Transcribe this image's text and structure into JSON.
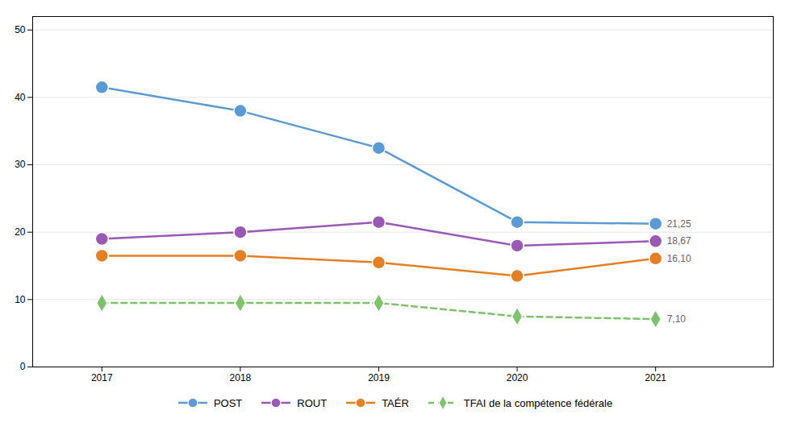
{
  "chart_data": {
    "type": "line",
    "x": [
      2017,
      2018,
      2019,
      2020,
      2021
    ],
    "series": [
      {
        "name": "POST",
        "color": "#5B9BD5",
        "marker": "circle",
        "line_style": "solid",
        "values": [
          41.5,
          38.0,
          32.5,
          21.5,
          21.25
        ]
      },
      {
        "name": "ROUT",
        "color": "#9B59B6",
        "marker": "circle",
        "line_style": "solid",
        "values": [
          19.0,
          20.0,
          21.5,
          18.0,
          18.67
        ]
      },
      {
        "name": "TAÉR",
        "color": "#E67E22",
        "marker": "circle",
        "line_style": "solid",
        "values": [
          16.5,
          16.5,
          15.5,
          13.5,
          16.1
        ]
      },
      {
        "name": "TFAI de la compétence fédérale",
        "color": "#7DC36B",
        "marker": "diamond",
        "line_style": "dashed",
        "values": [
          9.5,
          9.5,
          9.5,
          7.5,
          7.1
        ]
      }
    ],
    "annotations": [
      {
        "text": "21,25",
        "x": 2021,
        "y": 21.25
      },
      {
        "text": "18,67",
        "x": 2021,
        "y": 18.67
      },
      {
        "text": "16,10",
        "x": 2021,
        "y": 16.1
      },
      {
        "text": "7,10",
        "x": 2021,
        "y": 7.1
      }
    ],
    "xlim": [
      2016.5,
      2021.85
    ],
    "xticks": [
      2017,
      2018,
      2019,
      2020,
      2021
    ],
    "ylim": [
      0,
      52
    ],
    "yticks": [
      0,
      10,
      20,
      30,
      40,
      50
    ],
    "grid": true,
    "legend": "bottom"
  }
}
